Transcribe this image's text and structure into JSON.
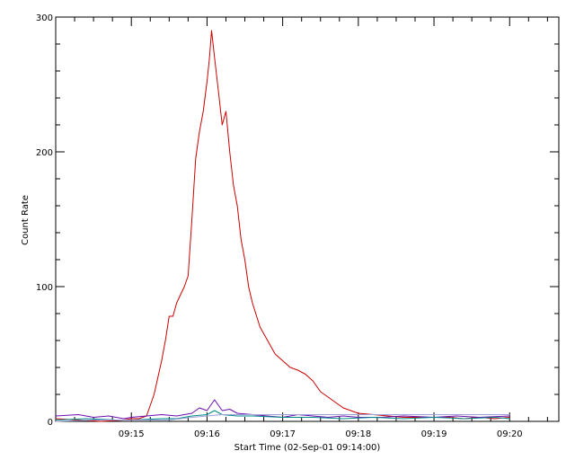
{
  "chart_data": {
    "type": "line",
    "xlabel": "Start Time (02-Sep-01 09:14:00)",
    "ylabel": "Count Rate",
    "x_unit": "minutes after 09:14:00",
    "xlim": [
      0,
      6.65
    ],
    "ylim": [
      0,
      300
    ],
    "grid": false,
    "legend": "none",
    "x_ticks": [
      {
        "value": 1,
        "label": "09:15"
      },
      {
        "value": 2,
        "label": "09:16"
      },
      {
        "value": 3,
        "label": "09:17"
      },
      {
        "value": 4,
        "label": "09:18"
      },
      {
        "value": 5,
        "label": "09:19"
      },
      {
        "value": 6,
        "label": "09:20"
      }
    ],
    "y_ticks": [
      {
        "value": 0,
        "label": "0"
      },
      {
        "value": 100,
        "label": "100"
      },
      {
        "value": 200,
        "label": "200"
      },
      {
        "value": 300,
        "label": "300"
      }
    ],
    "series": [
      {
        "color": "#cc0000",
        "x": [
          0.0,
          0.3,
          0.6,
          0.9,
          1.0,
          1.1,
          1.2,
          1.3,
          1.4,
          1.45,
          1.5,
          1.55,
          1.6,
          1.7,
          1.75,
          1.8,
          1.85,
          1.9,
          1.95,
          2.0,
          2.03,
          2.06,
          2.1,
          2.15,
          2.2,
          2.25,
          2.3,
          2.35,
          2.4,
          2.45,
          2.5,
          2.55,
          2.6,
          2.7,
          2.8,
          2.9,
          3.0,
          3.1,
          3.2,
          3.3,
          3.4,
          3.5,
          3.6,
          3.7,
          3.8,
          3.9,
          4.0,
          4.2,
          4.4,
          4.6,
          4.8,
          5.0,
          5.2,
          5.4,
          5.6,
          5.8,
          6.0
        ],
        "y": [
          2,
          1,
          0,
          1,
          2,
          2,
          4,
          20,
          45,
          60,
          78,
          78,
          88,
          100,
          108,
          150,
          195,
          215,
          230,
          252,
          268,
          290,
          270,
          245,
          220,
          230,
          200,
          175,
          160,
          135,
          120,
          100,
          88,
          70,
          60,
          50,
          45,
          40,
          38,
          35,
          30,
          22,
          18,
          14,
          10,
          8,
          6,
          5,
          4,
          3,
          3,
          3,
          3,
          2,
          3,
          2,
          3
        ]
      },
      {
        "color": "#6a0dad",
        "x": [
          0.0,
          0.3,
          0.5,
          0.7,
          0.9,
          1.0,
          1.2,
          1.4,
          1.6,
          1.8,
          1.9,
          2.0,
          2.1,
          2.2,
          2.3,
          2.4,
          2.6,
          2.8,
          3.0,
          3.2,
          3.4,
          3.6,
          3.8,
          4.0,
          4.3,
          4.6,
          5.0,
          5.3,
          5.6,
          6.0
        ],
        "y": [
          4,
          5,
          3,
          4,
          2,
          3,
          4,
          5,
          4,
          6,
          10,
          8,
          16,
          8,
          9,
          6,
          5,
          4,
          3,
          5,
          4,
          3,
          4,
          3,
          3,
          4,
          3,
          4,
          3,
          4
        ]
      },
      {
        "color": "#008b8b",
        "x": [
          0.0,
          0.4,
          0.8,
          1.0,
          1.4,
          1.6,
          1.8,
          2.0,
          2.1,
          2.2,
          2.4,
          2.6,
          3.0,
          3.4,
          3.8,
          4.2,
          4.6,
          5.0,
          5.4,
          5.8,
          6.0
        ],
        "y": [
          1,
          2,
          1,
          1,
          2,
          2,
          4,
          5,
          8,
          5,
          4,
          4,
          3,
          3,
          2,
          3,
          2,
          3,
          2,
          3,
          2
        ]
      },
      {
        "color": "#a0a0d8",
        "x": [
          0.0,
          0.5,
          1.0,
          1.5,
          1.8,
          2.0,
          2.2,
          2.5,
          3.0,
          3.5,
          4.0,
          4.5,
          5.0,
          5.5,
          6.0
        ],
        "y": [
          0,
          1,
          1,
          1,
          3,
          4,
          5,
          5,
          5,
          5,
          5,
          5,
          5,
          5,
          5
        ]
      }
    ]
  }
}
